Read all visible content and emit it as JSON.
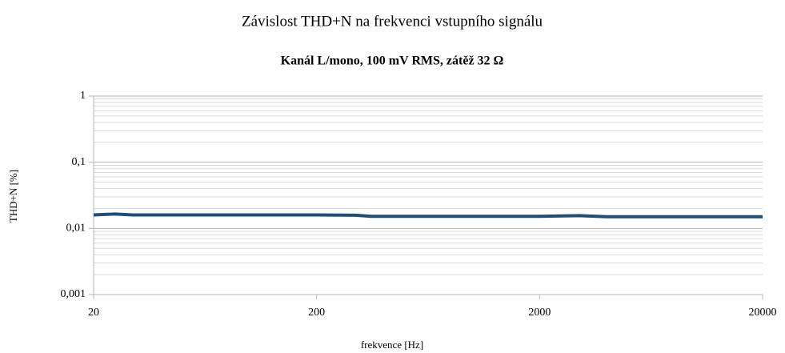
{
  "chart_data": {
    "type": "line",
    "title": "Závislost THD+N na frekvenci vstupního signálu",
    "subtitle": "Kanál L/mono, 100 mV RMS, zátěž 32 Ω",
    "x_label": "frekvence [Hz]",
    "y_label": "THD+N [%]",
    "x": [
      20,
      25,
      30,
      50,
      100,
      200,
      300,
      350,
      500,
      1000,
      2000,
      3000,
      4000,
      10000,
      20000
    ],
    "series": [
      {
        "name": "THD+N",
        "color": "#1f4e79",
        "values": [
          0.016,
          0.0165,
          0.016,
          0.016,
          0.016,
          0.016,
          0.0158,
          0.0152,
          0.0152,
          0.0152,
          0.0152,
          0.0156,
          0.015,
          0.015,
          0.015
        ]
      }
    ],
    "xlim": [
      20,
      20000
    ],
    "xticks": [
      20,
      200,
      2000,
      20000
    ],
    "ylim": [
      0.001,
      1
    ],
    "yticks": [
      {
        "value": 0.001,
        "label": "0,001"
      },
      {
        "value": 0.01,
        "label": "0,01"
      },
      {
        "value": 0.1,
        "label": "0,1"
      },
      1
    ],
    "xlog": true,
    "ylog": true,
    "grid": true,
    "minor_grid": true
  }
}
